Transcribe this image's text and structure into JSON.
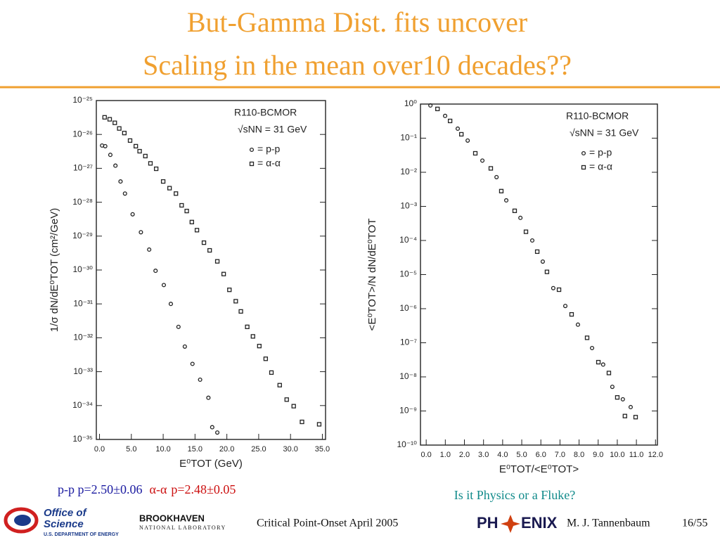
{
  "slide": {
    "title_lines": [
      "But-Gamma Dist. fits uncover",
      "Scaling in the mean over10 decades??"
    ],
    "fit_note": {
      "pp": "p-p p=2.50±0.06",
      "aa_sym": "α-α",
      "aa": "p=2.48±0.05"
    },
    "question": "Is it Physics or a Fluke?",
    "footer": {
      "doe": [
        "Office of",
        "Science",
        "U.S. DEPARTMENT OF ENERGY"
      ],
      "bnl": [
        "BROOKHAVEN",
        "NATIONAL LABORATORY"
      ],
      "center": "Critical Point-Onset April 2005",
      "phenix": [
        "PH",
        "ENIX"
      ],
      "author": "M. J. Tannenbaum",
      "page": "16/55"
    }
  },
  "chart_data": [
    {
      "type": "scatter",
      "xlabel": "E⁰TOT (GeV)",
      "ylabel": "1/σ dN/dE⁰TOT (cm²/GeV)",
      "annotations": [
        "R110-BCMOR",
        "√sNN = 31 GeV"
      ],
      "ylog": true,
      "xlim": [
        -0.5,
        35.5
      ],
      "ylim": [
        1e-35,
        1e-25
      ],
      "xticks": [
        {
          "value": 0,
          "label": "0.0"
        },
        {
          "value": 5,
          "label": "5.0"
        },
        {
          "value": 10,
          "label": "10.0"
        },
        {
          "value": 15,
          "label": "15.0"
        },
        {
          "value": 20,
          "label": "20.0"
        },
        {
          "value": 25,
          "label": "25.0"
        },
        {
          "value": 30,
          "label": "30.0"
        },
        {
          "value": 35,
          "label": "35.0"
        }
      ],
      "yticks": [
        {
          "value": 1e-25,
          "label": "10⁻²⁵"
        },
        {
          "value": 1e-26,
          "label": "10⁻²⁶"
        },
        {
          "value": 1e-27,
          "label": "10⁻²⁷"
        },
        {
          "value": 1e-28,
          "label": "10⁻²⁸"
        },
        {
          "value": 1e-29,
          "label": "10⁻²⁹"
        },
        {
          "value": 1e-30,
          "label": "10⁻³⁰"
        },
        {
          "value": 1e-31,
          "label": "10⁻³¹"
        },
        {
          "value": 1e-32,
          "label": "10⁻³²"
        },
        {
          "value": 1e-33,
          "label": "10⁻³³"
        },
        {
          "value": 1e-34,
          "label": "10⁻³⁴"
        },
        {
          "value": 1e-35,
          "label": "10⁻³⁵"
        }
      ],
      "series": [
        {
          "name": "= p-p",
          "marker": "circle",
          "color": "#222222",
          "x": [
            0.4,
            0.9,
            1.7,
            2.5,
            3.3,
            4.0,
            5.2,
            6.5,
            7.8,
            8.8,
            10.1,
            11.2,
            12.4,
            13.4,
            14.6,
            15.8,
            17.1,
            17.7,
            18.5
          ],
          "values": [
            4.7e-27,
            4.5e-27,
            2.5e-27,
            1.2e-27,
            4.1e-28,
            1.8e-28,
            4.4e-29,
            1.3e-29,
            4e-30,
            9.5e-31,
            3.6e-31,
            1e-31,
            2.1e-32,
            5.5e-33,
            1.7e-33,
            5.8e-34,
            1.7e-34,
            2.3e-35,
            1.6e-35
          ]
        },
        {
          "name": "= α-α",
          "marker": "square",
          "color": "#222222",
          "x": [
            0.8,
            1.6,
            2.4,
            3.1,
            3.9,
            4.8,
            5.7,
            6.3,
            7.2,
            8.0,
            8.9,
            10.0,
            11.0,
            12.0,
            12.9,
            13.7,
            14.5,
            15.3,
            16.4,
            17.3,
            18.5,
            19.5,
            20.4,
            21.4,
            22.2,
            23.2,
            24.1,
            25.1,
            26.1,
            27.0,
            28.3,
            29.4,
            30.5,
            31.8,
            34.5
          ],
          "values": [
            3.2e-26,
            2.8e-26,
            2.2e-26,
            1.5e-26,
            1.1e-26,
            6.6e-27,
            4.5e-27,
            3.2e-27,
            2.3e-27,
            1.4e-27,
            9.7e-28,
            4.1e-28,
            2.6e-28,
            1.8e-28,
            8.1e-29,
            5.5e-29,
            2.6e-29,
            1.5e-29,
            6.4e-30,
            3.8e-30,
            1.8e-30,
            7.6e-31,
            2.6e-31,
            1.2e-31,
            6e-32,
            2.1e-32,
            1.1e-32,
            5.7e-33,
            2.4e-33,
            9.4e-34,
            4e-34,
            1.5e-34,
            9.6e-35,
            3.3e-35,
            2.8e-35
          ]
        }
      ]
    },
    {
      "type": "scatter",
      "xlabel": "E⁰TOT/<E⁰TOT>",
      "ylabel": "<E⁰TOT>/N dN/dE⁰TOT",
      "annotations": [
        "R110-BCMOR",
        "√sNN = 31 GeV"
      ],
      "ylog": true,
      "xlim": [
        -0.3,
        12.1
      ],
      "ylim": [
        1e-10,
        1
      ],
      "xticks": [
        {
          "value": 0,
          "label": "0.0"
        },
        {
          "value": 1,
          "label": "1.0"
        },
        {
          "value": 2,
          "label": "2.0"
        },
        {
          "value": 3,
          "label": "3.0"
        },
        {
          "value": 4,
          "label": "4.0"
        },
        {
          "value": 5,
          "label": "5.0"
        },
        {
          "value": 6,
          "label": "6.0"
        },
        {
          "value": 7,
          "label": "7.0"
        },
        {
          "value": 8,
          "label": "8.0"
        },
        {
          "value": 9,
          "label": "9.0"
        },
        {
          "value": 10,
          "label": "10.0"
        },
        {
          "value": 11,
          "label": "11.0"
        },
        {
          "value": 12,
          "label": "12.0"
        }
      ],
      "yticks": [
        {
          "value": 1,
          "label": "10⁰"
        },
        {
          "value": 0.1,
          "label": "10⁻¹"
        },
        {
          "value": 0.01,
          "label": "10⁻²"
        },
        {
          "value": 0.001,
          "label": "10⁻³"
        },
        {
          "value": 0.0001,
          "label": "10⁻⁴"
        },
        {
          "value": 1e-05,
          "label": "10⁻⁵"
        },
        {
          "value": 1e-06,
          "label": "10⁻⁶"
        },
        {
          "value": 1e-07,
          "label": "10⁻⁷"
        },
        {
          "value": 1e-08,
          "label": "10⁻⁸"
        },
        {
          "value": 1e-09,
          "label": "10⁻⁹"
        },
        {
          "value": 1e-10,
          "label": "10⁻¹⁰"
        }
      ],
      "series": [
        {
          "name": "= p-p",
          "marker": "circle",
          "color": "#222222",
          "x": [
            0.22,
            0.99,
            1.65,
            2.17,
            2.94,
            3.68,
            4.19,
            4.93,
            5.55,
            6.1,
            6.65,
            7.28,
            7.94,
            8.68,
            9.26,
            9.74,
            10.29,
            10.7
          ],
          "values": [
            0.91,
            0.45,
            0.19,
            0.085,
            0.022,
            0.0072,
            0.0015,
            0.00046,
            0.0001,
            2.4e-05,
            4e-06,
            1.2e-06,
            3.4e-07,
            7e-08,
            2.3e-08,
            5.1e-09,
            2.2e-09,
            1.3e-09
          ]
        },
        {
          "name": "= α-α",
          "marker": "square",
          "color": "#222222",
          "x": [
            0.59,
            1.25,
            1.84,
            2.57,
            3.38,
            3.93,
            4.63,
            5.22,
            5.81,
            6.32,
            6.95,
            7.61,
            8.42,
            9.01,
            9.56,
            10.0,
            10.4,
            10.96
          ],
          "values": [
            0.72,
            0.32,
            0.13,
            0.036,
            0.013,
            0.0028,
            0.00074,
            0.00018,
            4.7e-05,
            1.2e-05,
            3.6e-06,
            6.8e-07,
            1.4e-07,
            2.7e-08,
            1.3e-08,
            2.5e-09,
            7.1e-10,
            6.6e-10
          ]
        }
      ]
    }
  ]
}
